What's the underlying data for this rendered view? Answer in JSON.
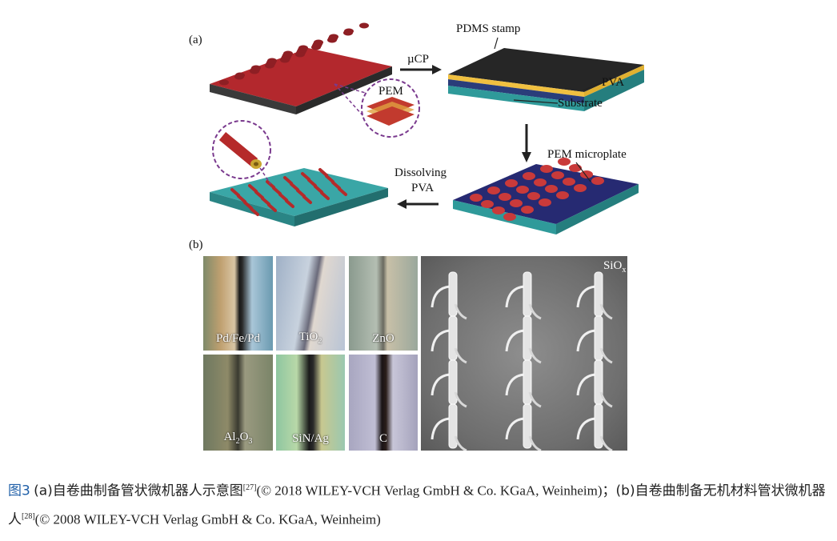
{
  "panel_a": {
    "letter": "(a)",
    "labels": {
      "pem": "PEM",
      "ucp": "µCP",
      "pdms_stamp": "PDMS stamp",
      "pva": "PVA",
      "substrate": "Substrate",
      "pem_microplate": "PEM microplate",
      "dissolving": "Dissolving",
      "dissolving_pva": "PVA"
    }
  },
  "panel_b": {
    "letter": "(b)",
    "tiles": [
      {
        "base": "Pd/Fe/Pd",
        "sub": ""
      },
      {
        "base": "TiO",
        "sub": "2"
      },
      {
        "base": "ZnO",
        "sub": ""
      },
      {
        "base": "Al",
        "sub": "2",
        "base2": "O",
        "sub2": "3"
      },
      {
        "base": "SiN/Ag",
        "sub": ""
      },
      {
        "base": "C",
        "sub": ""
      }
    ],
    "sem": {
      "base": "SiO",
      "sub": "x"
    }
  },
  "caption": {
    "fig_label": "图3",
    "part1_cjk": "(a)自卷曲制备管状微机器人示意图",
    "ref1": "[27]",
    "part1_paren": "(© 2018 WILEY-VCH Verlag GmbH & Co. KGaA, Weinheim)；",
    "part2_cjk": "(b)自卷曲制备无机材料管状微机器人",
    "ref2": "[28]",
    "part2_paren": "(© 2008 WILEY-VCH Verlag GmbH & Co. KGaA, Weinheim)"
  }
}
